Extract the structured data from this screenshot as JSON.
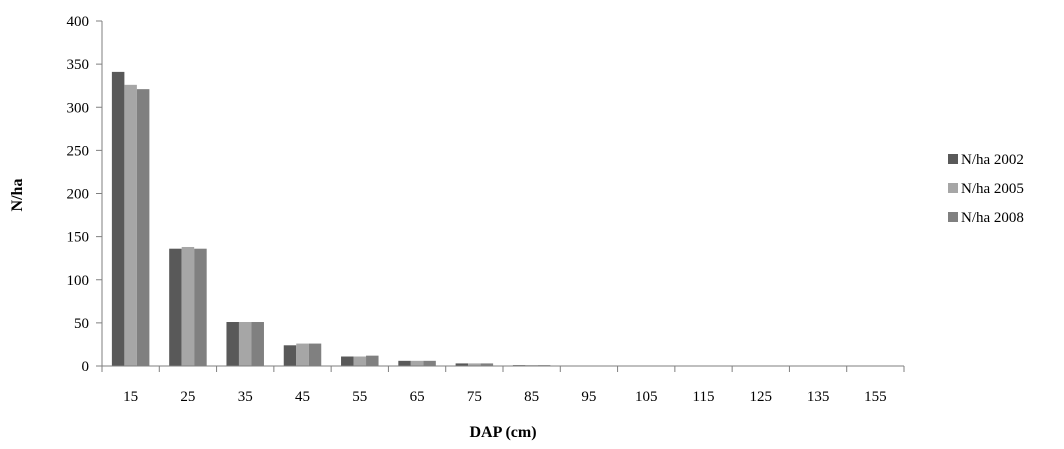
{
  "chart_data": {
    "type": "bar",
    "title": "",
    "xlabel": "DAP (cm)",
    "ylabel": "N/ha",
    "ylim": [
      0,
      400
    ],
    "yticks": [
      0,
      50,
      100,
      150,
      200,
      250,
      300,
      350,
      400
    ],
    "categories": [
      "15",
      "25",
      "35",
      "45",
      "55",
      "65",
      "75",
      "85",
      "95",
      "105",
      "115",
      "125",
      "135",
      "155"
    ],
    "series": [
      {
        "name": "N/ha 2002",
        "color": "#595959",
        "values": [
          341,
          136,
          51,
          24,
          11,
          6,
          3,
          1,
          0,
          0,
          0,
          0,
          0,
          0
        ]
      },
      {
        "name": "N/ha 2005",
        "color": "#a6a6a6",
        "values": [
          326,
          138,
          51,
          26,
          11,
          6,
          3,
          1,
          0,
          0,
          0,
          0,
          0,
          0
        ]
      },
      {
        "name": "N/ha 2008",
        "color": "#808080",
        "values": [
          321,
          136,
          51,
          26,
          12,
          6,
          3,
          1,
          0,
          0,
          0,
          0,
          0,
          0
        ]
      }
    ],
    "grid": false,
    "legend_position": "right"
  }
}
